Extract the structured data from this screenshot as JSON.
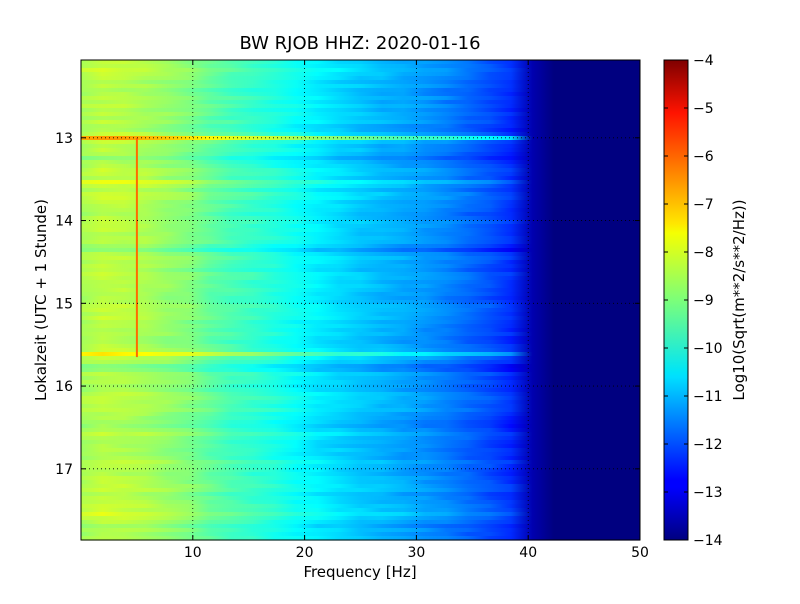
{
  "chart_data": {
    "type": "heatmap",
    "title": "BW RJOB HHZ: 2020-01-16",
    "xlabel": "Frequency [Hz]",
    "ylabel": "Lokalzeit (UTC + 1 Stunde)",
    "colorbar_label": "Log10(Sqrt(m**2/s**2/Hz))",
    "colormap": "jet",
    "xlim": [
      0,
      50
    ],
    "ylim": [
      12.06,
      17.86
    ],
    "y_inverted": true,
    "x_ticks": [
      10,
      20,
      30,
      40,
      50
    ],
    "x_tick_labels": [
      "10",
      "20",
      "30",
      "40",
      "50"
    ],
    "y_ticks": [
      13,
      14,
      15,
      16,
      17
    ],
    "y_tick_labels": [
      "13",
      "14",
      "15",
      "16",
      "17"
    ],
    "grid": true,
    "color_range": [
      -14,
      -4
    ],
    "colorbar_ticks": [
      -4,
      -5,
      -6,
      -7,
      -8,
      -9,
      -10,
      -11,
      -12,
      -13,
      -14
    ],
    "colorbar_tick_labels": [
      "−4",
      "−5",
      "−6",
      "−7",
      "−8",
      "−9",
      "−10",
      "−11",
      "−12",
      "−13",
      "−14"
    ],
    "frequency_profile": {
      "frequency_hz": [
        0,
        2,
        5,
        8,
        10,
        12,
        15,
        18,
        20,
        23,
        26,
        30,
        33,
        36,
        38,
        40,
        40.6,
        50
      ],
      "log10_amplitude": [
        -8.6,
        -8.4,
        -8.5,
        -8.8,
        -9.0,
        -9.4,
        -9.7,
        -10.0,
        -10.3,
        -10.6,
        -10.9,
        -11.2,
        -11.5,
        -11.9,
        -12.2,
        -12.7,
        -14.0,
        -14.0
      ]
    },
    "bright_bands": [
      {
        "time": 13.0,
        "fmax_hz": 44,
        "strength": 1.6
      },
      {
        "time": 13.55,
        "fmax_hz": 40,
        "strength": 0.5
      },
      {
        "time": 13.7,
        "fmax_hz": 40,
        "strength": 0.35
      },
      {
        "time": 15.62,
        "fmax_hz": 43,
        "strength": 0.9
      },
      {
        "time": 12.2,
        "fmax_hz": 30,
        "strength": 0.35
      },
      {
        "time": 17.55,
        "fmax_hz": 35,
        "strength": 0.3
      }
    ],
    "dark_bands": [
      {
        "time": 13.25,
        "fmax_hz": 40,
        "strength": 0.5
      },
      {
        "time": 14.35,
        "fmax_hz": 40,
        "strength": 0.35
      },
      {
        "time": 15.78,
        "fmax_hz": 40,
        "strength": 0.45
      },
      {
        "time": 16.45,
        "fmax_hz": 40,
        "strength": 0.35
      },
      {
        "time": 17.7,
        "fmax_hz": 40,
        "strength": 0.35
      }
    ],
    "spectral_line": {
      "frequency_hz": 5.0,
      "time_start": 13.0,
      "time_end": 15.65,
      "log10_amplitude": -6.3
    }
  }
}
